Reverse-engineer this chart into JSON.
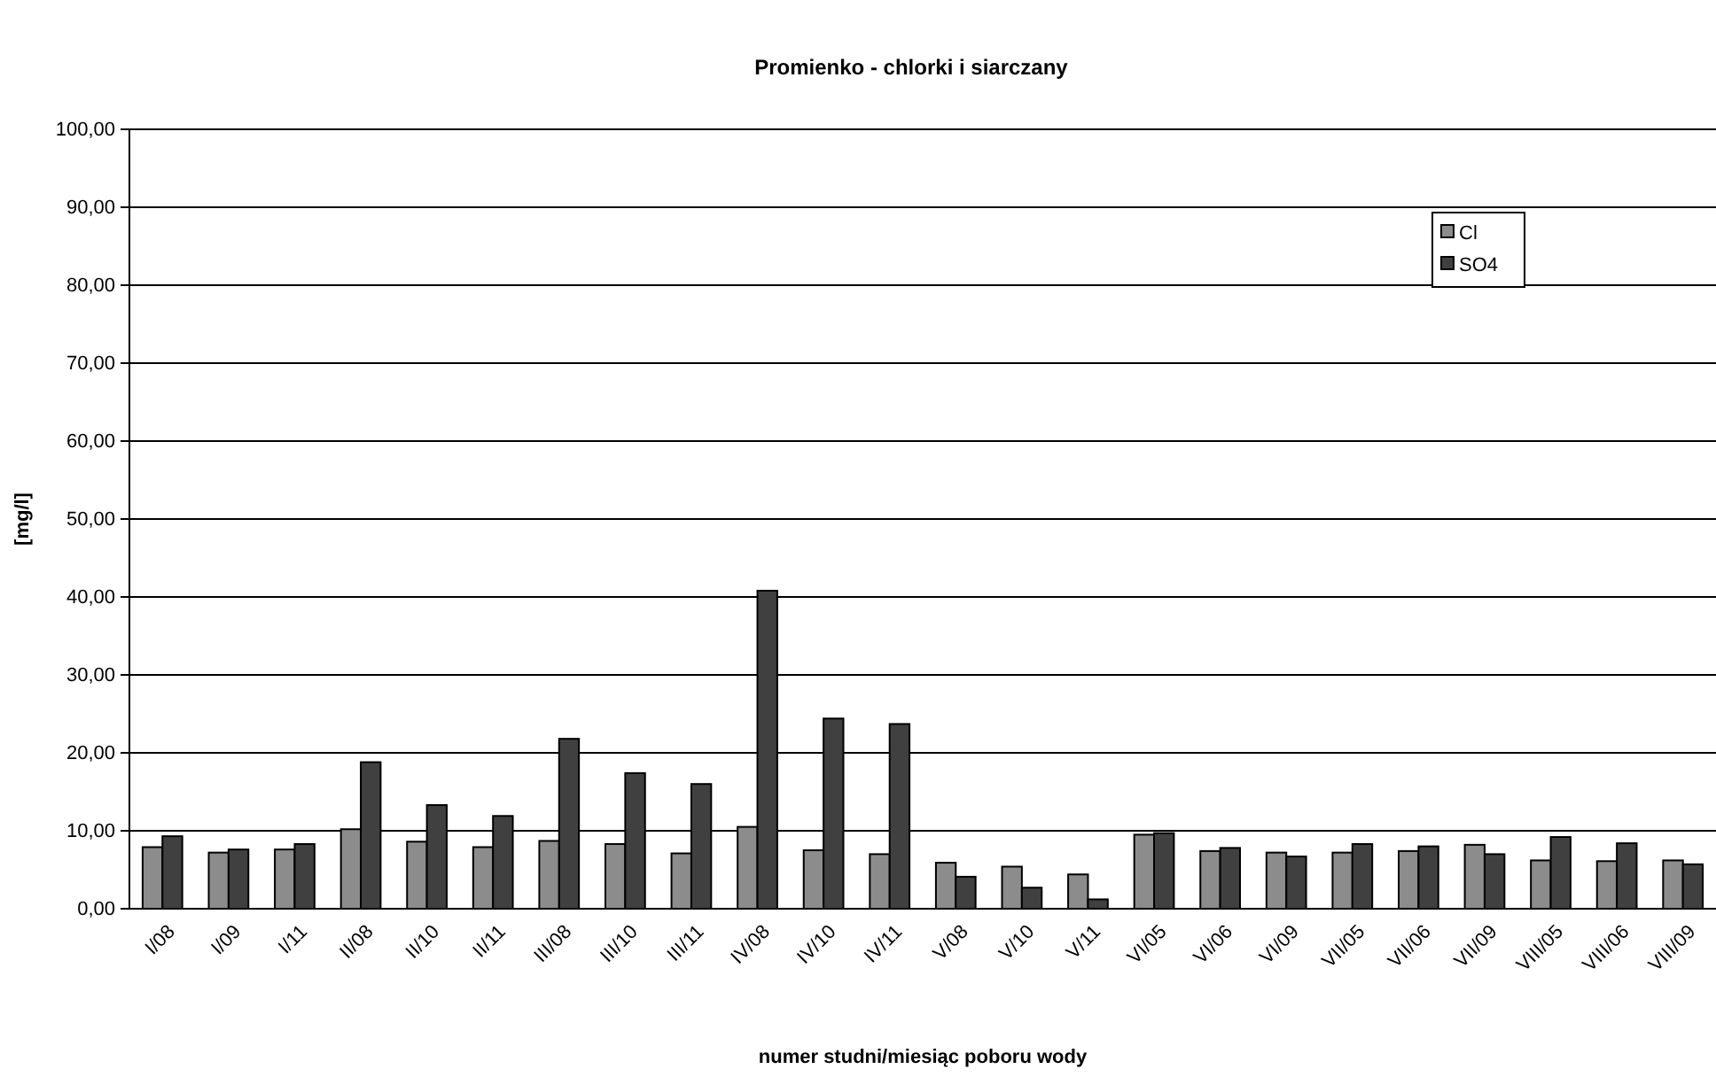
{
  "chart_data": {
    "type": "bar",
    "title": "Promienko - chlorki i siarczany",
    "xlabel": "numer studni/miesiąc poboru wody",
    "ylabel": "[mg/l]",
    "categories": [
      "I/08",
      "I/09",
      "I/11",
      "II/08",
      "II/10",
      "II/11",
      "III/08",
      "III/10",
      "III/11",
      "IV/08",
      "IV/10",
      "IV/11",
      "V/08",
      "V/10",
      "V/11",
      "VI/05",
      "VI/06",
      "VI/09",
      "VII/05",
      "VII/06",
      "VII/09",
      "VIII/05",
      "VIII/06",
      "VIII/09"
    ],
    "series": [
      {
        "name": "Cl",
        "color": "#8c8c8c",
        "values": [
          7.9,
          7.2,
          7.6,
          10.2,
          8.6,
          7.9,
          8.7,
          8.3,
          7.1,
          10.5,
          7.5,
          7.0,
          5.9,
          5.4,
          4.4,
          9.5,
          7.4,
          7.2,
          7.2,
          7.4,
          8.2,
          6.2,
          6.1,
          6.2
        ]
      },
      {
        "name": "SO4",
        "color": "#404040",
        "values": [
          9.3,
          7.6,
          8.3,
          18.8,
          13.3,
          11.9,
          21.8,
          17.4,
          16.0,
          40.8,
          24.4,
          23.7,
          4.1,
          2.7,
          1.2,
          9.7,
          7.8,
          6.7,
          8.3,
          8.0,
          7.0,
          9.2,
          8.4,
          5.7
        ]
      }
    ],
    "ylim": [
      0,
      100
    ],
    "yticks": [
      {
        "value": 0,
        "label": "0,00"
      },
      {
        "value": 10,
        "label": "10,00"
      },
      {
        "value": 20,
        "label": "20,00"
      },
      {
        "value": 30,
        "label": "30,00"
      },
      {
        "value": 40,
        "label": "40,00"
      },
      {
        "value": 50,
        "label": "50,00"
      },
      {
        "value": 60,
        "label": "60,00"
      },
      {
        "value": 70,
        "label": "70,00"
      },
      {
        "value": 80,
        "label": "80,00"
      },
      {
        "value": 90,
        "label": "90,00"
      },
      {
        "value": 100,
        "label": "100,00"
      }
    ],
    "grid": "y",
    "legend": "top right"
  }
}
